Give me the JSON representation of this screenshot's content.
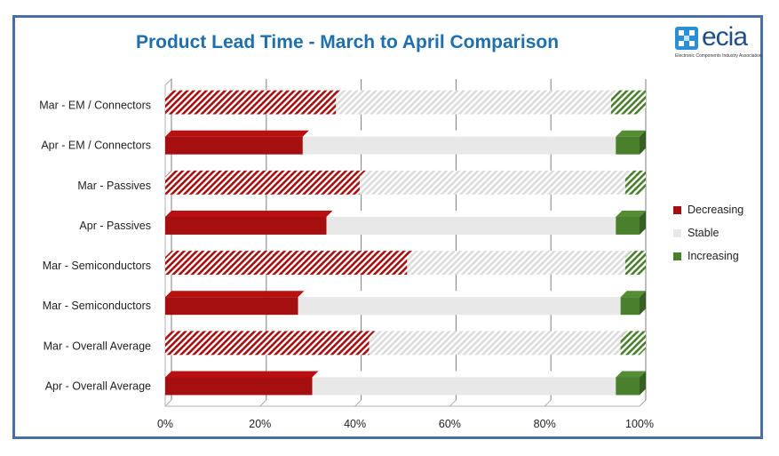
{
  "title": "Product Lead Time - March to April Comparison",
  "logo": {
    "name": "ecia",
    "tagline": "Electronic Components Industry Association"
  },
  "colors": {
    "decreasing": "#a50f0f",
    "stable": "#e8e8e8",
    "increasing": "#4a7f2e",
    "grid": "#7f7f7f",
    "axis_text": "#222222",
    "title": "#1f6fae"
  },
  "legend": {
    "position": "right",
    "items": [
      {
        "label": "Decreasing",
        "color": "#a50f0f"
      },
      {
        "label": "Stable",
        "color": "#e8e8e8"
      },
      {
        "label": "Increasing",
        "color": "#4a7f2e"
      }
    ]
  },
  "chart_data": {
    "type": "bar",
    "orientation": "horizontal",
    "stacked": "100%",
    "title": "Product Lead Time - March to April Comparison",
    "xlabel": "",
    "ylabel": "",
    "xlim": [
      0,
      100
    ],
    "x_ticks": [
      "0%",
      "20%",
      "40%",
      "60%",
      "80%",
      "100%"
    ],
    "grid": true,
    "categories": [
      "Mar - EM / Connectors",
      "Apr - EM / Connectors",
      "Mar - Passives",
      "Apr - Passives",
      "Mar - Semiconductors",
      "Mar - Semiconductors",
      "Mar - Overall Average",
      "Apr - Overall Average"
    ],
    "hatched": [
      true,
      false,
      true,
      false,
      true,
      false,
      true,
      false
    ],
    "series": [
      {
        "name": "Decreasing",
        "values": [
          36,
          29,
          41,
          34,
          51,
          28,
          43,
          31
        ]
      },
      {
        "name": "Stable",
        "values": [
          58,
          66,
          56,
          61,
          46,
          68,
          53,
          64
        ]
      },
      {
        "name": "Increasing",
        "values": [
          6,
          5,
          3,
          5,
          3,
          4,
          4,
          5
        ]
      }
    ]
  }
}
